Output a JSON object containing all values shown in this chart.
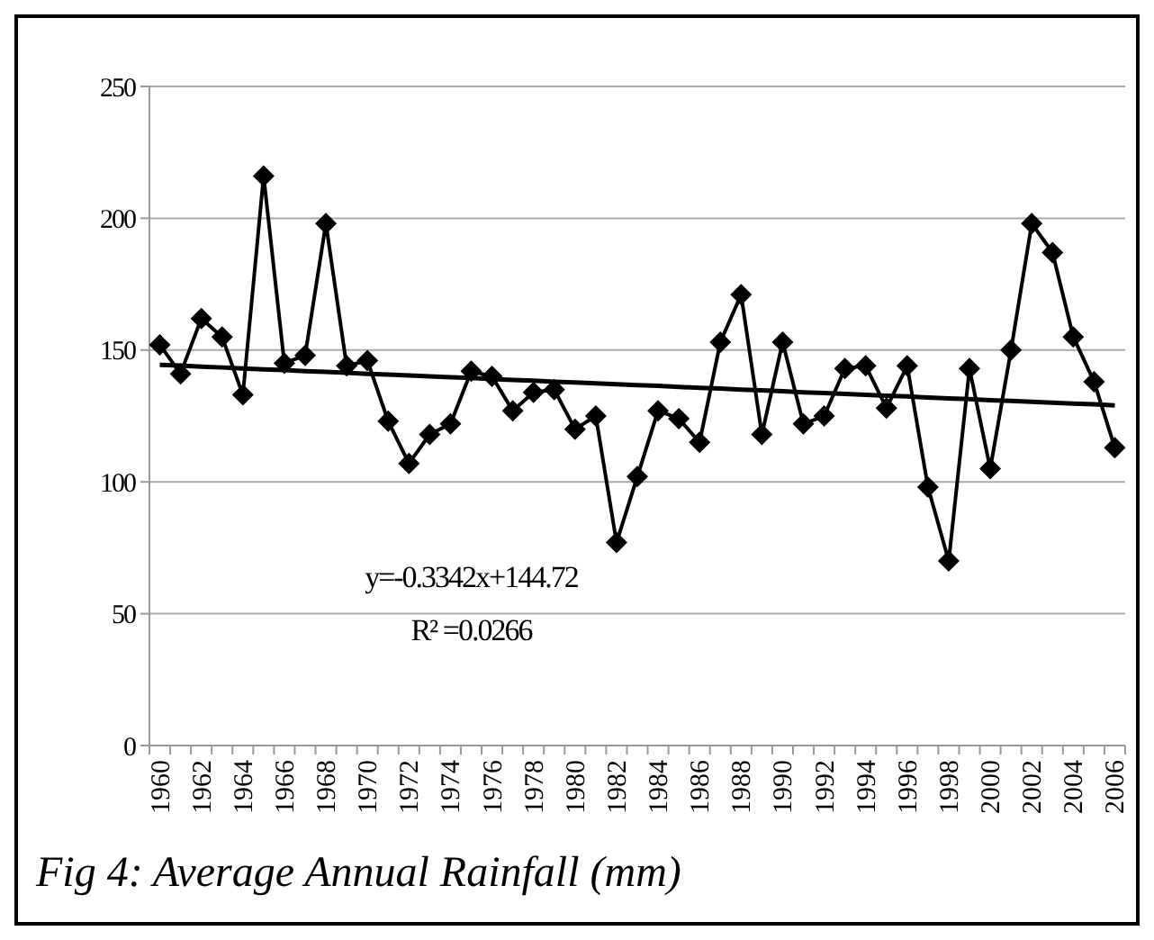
{
  "chart_data": {
    "type": "line",
    "title": "Fig 4: Average Annual Rainfall (mm)",
    "categories": [
      "1960",
      null,
      "1962",
      null,
      "1964",
      null,
      "1966",
      null,
      "1968",
      null,
      "1970",
      null,
      "1972",
      null,
      "1974",
      null,
      "1976",
      null,
      "1978",
      null,
      "1980",
      null,
      "1982",
      null,
      "1984",
      null,
      "1986",
      null,
      "1988",
      null,
      "1990",
      null,
      "1992",
      null,
      "1994",
      null,
      "1996",
      null,
      "1998",
      null,
      "2000",
      null,
      "2002",
      null,
      "2004",
      null,
      "2006"
    ],
    "series": [
      {
        "color": "#000000",
        "marker": "diamond",
        "values": [
          152,
          141,
          162,
          155,
          133,
          216,
          145,
          148,
          198,
          144,
          146,
          123,
          107,
          118,
          122,
          142,
          140,
          127,
          134,
          135,
          120,
          125,
          77,
          102,
          127,
          124,
          115,
          153,
          171,
          118,
          153,
          122,
          125,
          143,
          144,
          128,
          144,
          98,
          70,
          143,
          105,
          150,
          198,
          187,
          155,
          138,
          113
        ]
      },
      {
        "type": "line",
        "color": "#000000",
        "marker": "none",
        "values": [
          144.4,
          144.1,
          143.7,
          143.4,
          143.0,
          142.7,
          142.4,
          142.0,
          141.7,
          141.4,
          141.0,
          140.7,
          140.4,
          140.0,
          139.7,
          139.4,
          139.0,
          138.7,
          138.4,
          138.0,
          137.7,
          137.4,
          137.0,
          136.7,
          136.4,
          136.0,
          135.7,
          135.4,
          135.0,
          134.7,
          134.4,
          134.0,
          133.7,
          133.4,
          133.0,
          132.7,
          132.4,
          132.0,
          131.7,
          131.4,
          131.0,
          130.7,
          130.4,
          130.0,
          129.7,
          129.4,
          129.0
        ]
      }
    ],
    "annotations": [
      "y=-0.3342x+144.72",
      "R² =0.0266"
    ],
    "ylim": [
      0,
      250
    ],
    "yticks": [
      0,
      50,
      100,
      150,
      200,
      250
    ],
    "grid": "y"
  }
}
